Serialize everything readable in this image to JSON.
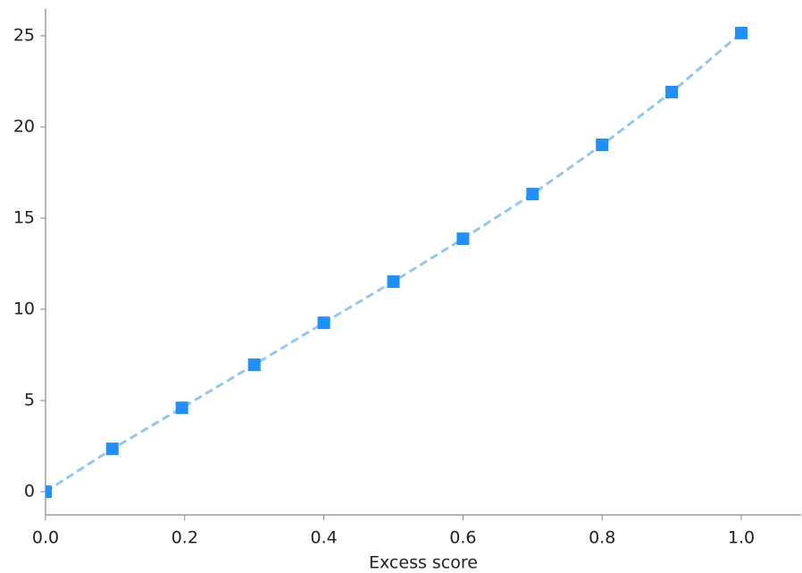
{
  "chart_data": {
    "type": "line",
    "x_label": "Excess score",
    "x": [
      0,
      0.096,
      0.196,
      0.3,
      0.4,
      0.5,
      0.6,
      0.7,
      0.8,
      0.9,
      1.0
    ],
    "series": [
      {
        "name": "score",
        "color": "#1e90ff",
        "line_color": "#90c8f0",
        "values": [
          0,
          2.35,
          4.6,
          6.96,
          9.26,
          11.52,
          13.87,
          16.32,
          19.02,
          21.91,
          25.15
        ]
      }
    ],
    "xlim": [
      0,
      1.086
    ],
    "ylim": [
      -1.27,
      26.47
    ],
    "xticks": [
      {
        "value": 0,
        "label": "0.0"
      },
      0.2,
      0.4,
      0.6,
      0.8,
      {
        "value": 1,
        "label": "1.0"
      }
    ],
    "yticks": [
      0,
      5,
      10,
      15,
      20,
      25
    ]
  }
}
